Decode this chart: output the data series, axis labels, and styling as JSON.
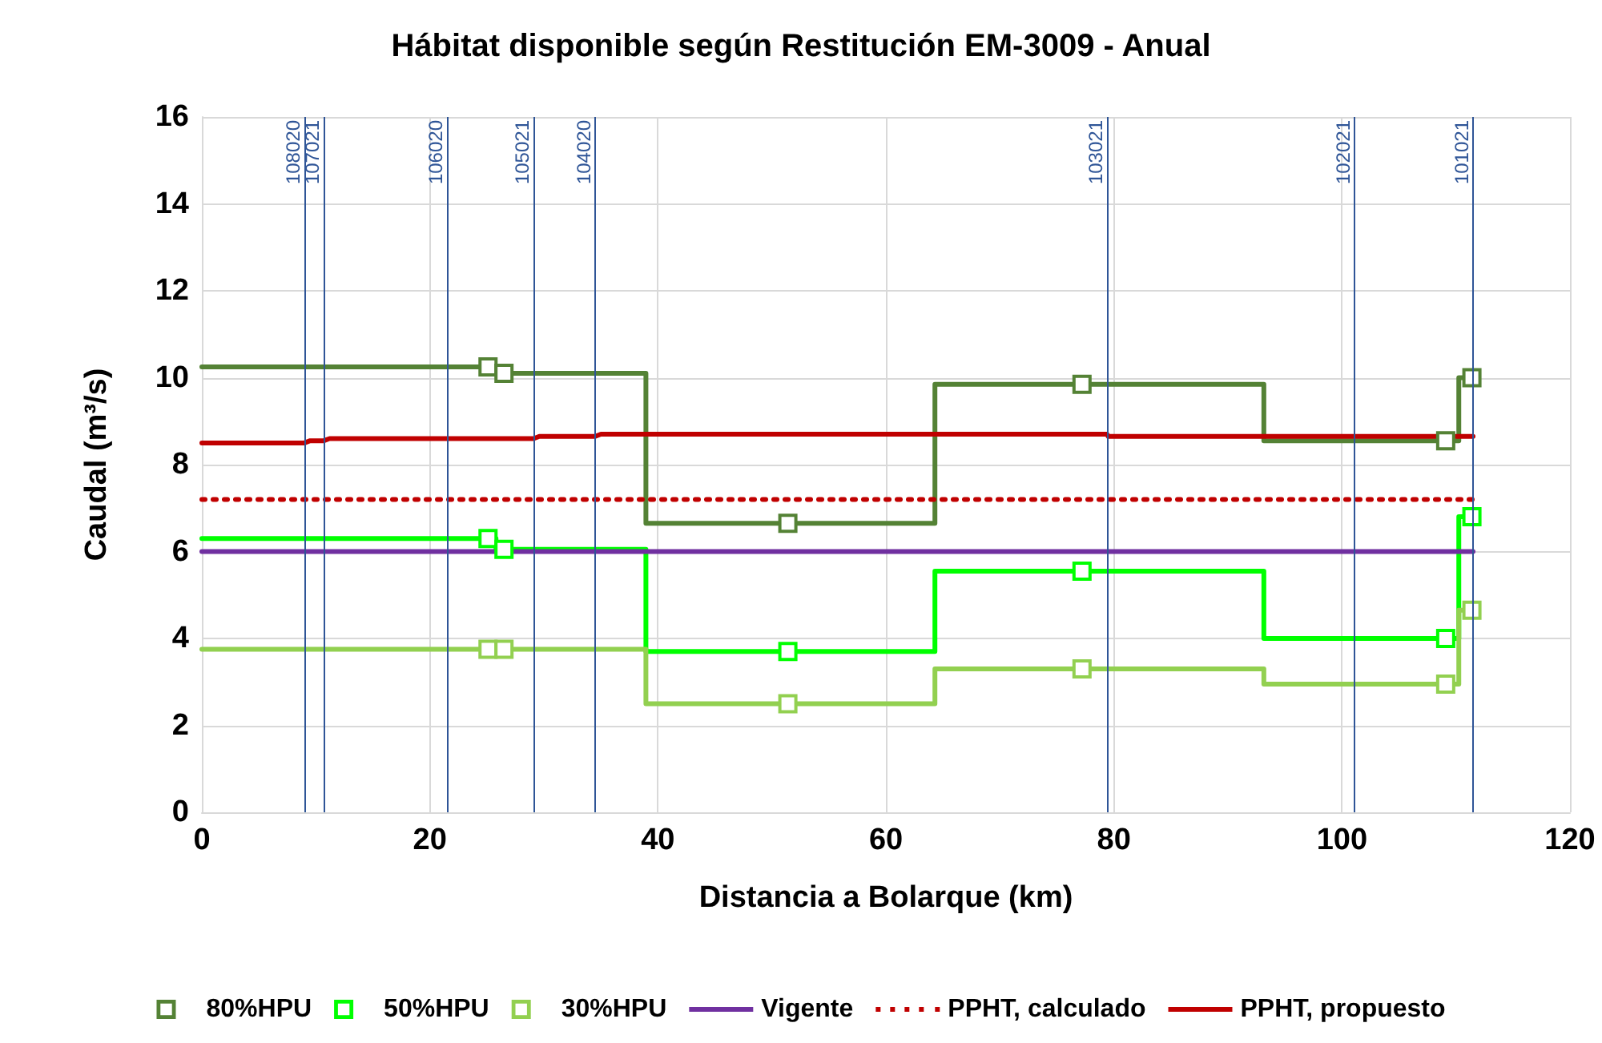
{
  "chart_data": {
    "type": "line",
    "title": "Hábitat disponible según Restitución EM-3009 - Anual",
    "xlabel": "Distancia a Bolarque (km)",
    "ylabel": "Caudal (m³/s)",
    "xlim": [
      0,
      120
    ],
    "xticks": [
      0,
      20,
      40,
      60,
      80,
      100,
      120
    ],
    "ylim": [
      0,
      16
    ],
    "yticks": [
      0,
      2,
      4,
      6,
      8,
      10,
      12,
      14,
      16
    ],
    "grid": true,
    "legend": "bottom",
    "series": [
      {
        "name": "80%HPU",
        "type": "step",
        "marker": "square",
        "color": "#548235",
        "x": [
          0,
          25.1,
          26.5,
          51.4,
          77.2,
          109.1,
          111.4
        ],
        "values": [
          10.25,
          10.25,
          10.1,
          6.65,
          9.85,
          8.55,
          10
        ]
      },
      {
        "name": "50%HPU",
        "type": "step",
        "marker": "square",
        "color": "#00ff00",
        "x": [
          0,
          25.1,
          26.5,
          51.4,
          77.2,
          109.1,
          111.4
        ],
        "values": [
          6.3,
          6.3,
          6.05,
          3.7,
          5.55,
          4,
          6.8
        ]
      },
      {
        "name": "30%HPU",
        "type": "step",
        "marker": "square",
        "color": "#92d050",
        "x": [
          0,
          25.1,
          26.5,
          51.4,
          77.2,
          109.1,
          111.4
        ],
        "values": [
          3.75,
          3.75,
          3.75,
          2.5,
          3.3,
          2.95,
          4.65
        ]
      },
      {
        "name": "Vigente",
        "type": "line",
        "marker": "none",
        "line_style": "solid",
        "color": "#7030a0",
        "x": [
          0,
          111.5
        ],
        "values": [
          6,
          6
        ]
      },
      {
        "name": "PPHT, calculado",
        "type": "line",
        "marker": "none",
        "line_style": "dotted",
        "color": "#c00000",
        "x": [
          0,
          111.5
        ],
        "values": [
          7.2,
          7.2
        ]
      },
      {
        "name": "PPHT, propuesto",
        "type": "line",
        "marker": "none",
        "line_style": "solid",
        "color": "#c00000",
        "x": [
          0,
          9,
          9.5,
          10.7,
          11.2,
          29.1,
          29.6,
          34.5,
          35,
          79.4,
          79.5,
          111.5
        ],
        "values": [
          8.5,
          8.5,
          8.55,
          8.55,
          8.6,
          8.6,
          8.65,
          8.65,
          8.7,
          8.7,
          8.65,
          8.65
        ]
      }
    ],
    "ref_lines": [
      {
        "axis": "x",
        "value": 9,
        "color": "#2f5597"
      },
      {
        "axis": "x",
        "value": 10.7,
        "color": "#2f5597"
      },
      {
        "axis": "x",
        "value": 21.5,
        "color": "#2f5597"
      },
      {
        "axis": "x",
        "value": 29.1,
        "color": "#2f5597"
      },
      {
        "axis": "x",
        "value": 34.5,
        "color": "#2f5597"
      },
      {
        "axis": "x",
        "value": 79.4,
        "color": "#2f5597"
      },
      {
        "axis": "x",
        "value": 101.1,
        "color": "#2f5597"
      },
      {
        "axis": "x",
        "value": 111.5,
        "color": "#2f5597"
      }
    ],
    "annotations": [
      {
        "text": "108020",
        "x": 9,
        "y": 16
      },
      {
        "text": "107021",
        "x": 10.7,
        "y": 16
      },
      {
        "text": "106020",
        "x": 21.5,
        "y": 16
      },
      {
        "text": "105021",
        "x": 29.1,
        "y": 16
      },
      {
        "text": "104020",
        "x": 34.5,
        "y": 16
      },
      {
        "text": "103021",
        "x": 79.4,
        "y": 16
      },
      {
        "text": "102021",
        "x": 101.1,
        "y": 16
      },
      {
        "text": "101021",
        "x": 111.5,
        "y": 16
      }
    ]
  }
}
